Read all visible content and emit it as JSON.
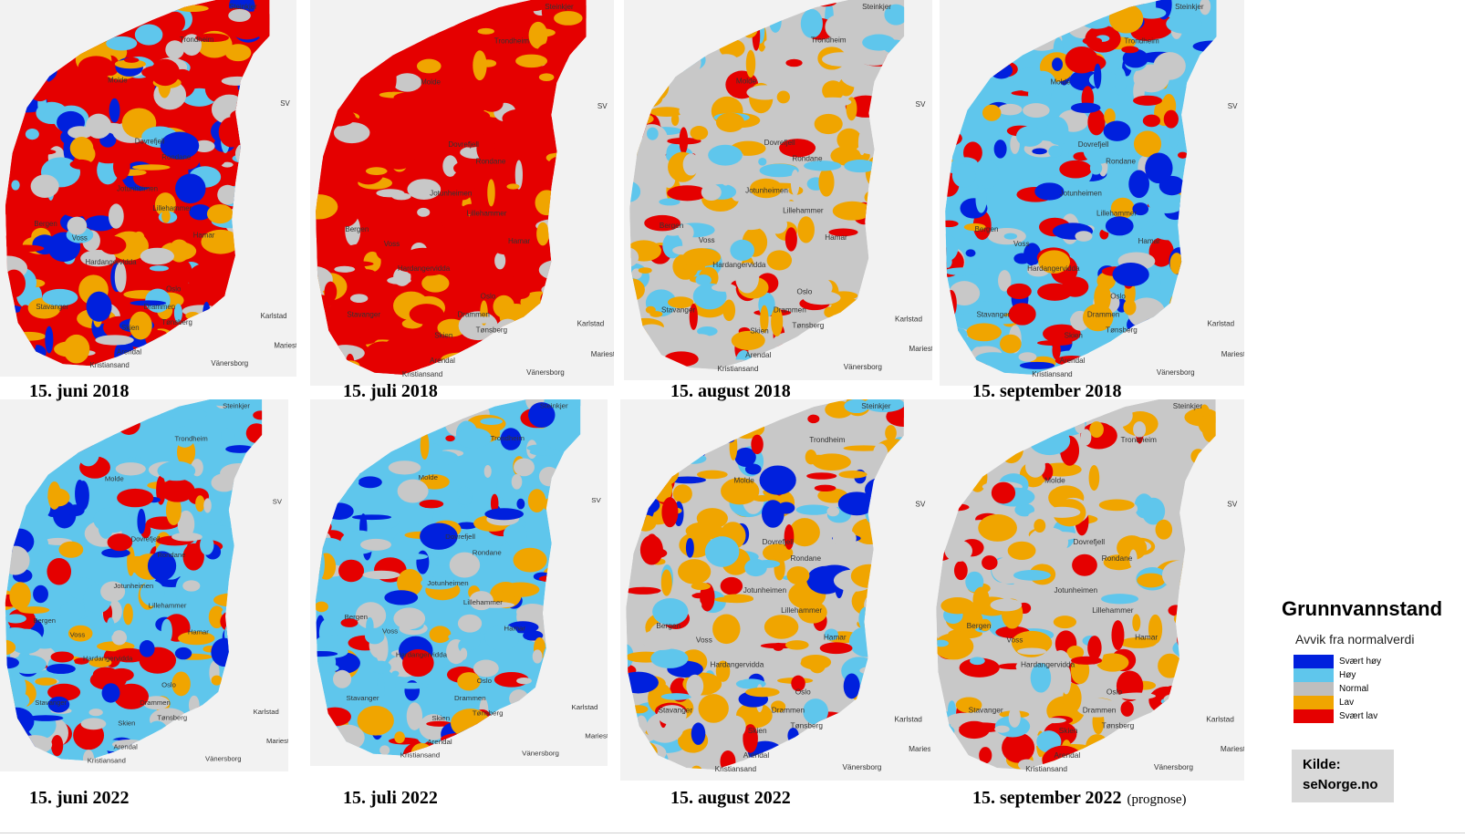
{
  "panels": [
    {
      "caption": "15. juni 2018",
      "palette": [
        "#e50000",
        "#e50000",
        "#f0a500",
        "#5fc6ec",
        "#0020dd",
        "#c8c8c8"
      ]
    },
    {
      "caption": "15. juli 2018",
      "palette": [
        "#e50000",
        "#e50000",
        "#e50000",
        "#f0a500",
        "#e50000",
        "#c8c8c8"
      ]
    },
    {
      "caption": "15. august 2018",
      "palette": [
        "#c8c8c8",
        "#f0a500",
        "#5fc6ec",
        "#e50000",
        "#c8c8c8",
        "#f0a500"
      ]
    },
    {
      "caption": "15. september 2018",
      "palette": [
        "#5fc6ec",
        "#0020dd",
        "#5fc6ec",
        "#e50000",
        "#f0a500",
        "#c8c8c8"
      ]
    },
    {
      "caption": "15. juni 2022",
      "palette": [
        "#5fc6ec",
        "#c8c8c8",
        "#e50000",
        "#f0a500",
        "#0020dd",
        "#5fc6ec"
      ]
    },
    {
      "caption": "15. juli 2022",
      "palette": [
        "#5fc6ec",
        "#0020dd",
        "#f0a500",
        "#e50000",
        "#c8c8c8",
        "#5fc6ec"
      ]
    },
    {
      "caption": "15. august 2022",
      "palette": [
        "#c8c8c8",
        "#f0a500",
        "#e50000",
        "#5fc6ec",
        "#f0a500",
        "#0020dd"
      ]
    },
    {
      "caption": "15. september 2022",
      "note": "(prognose)",
      "palette": [
        "#c8c8c8",
        "#f0a500",
        "#e50000",
        "#5fc6ec",
        "#f0a500",
        "#c8c8c8"
      ]
    }
  ],
  "cities": [
    "Steinkjer",
    "Trondheim",
    "Molde",
    "Dovrefjell",
    "Rondane",
    "Jotunheimen",
    "Lillehammer",
    "Hamar",
    "Bergen",
    "Voss",
    "Hardangervidda",
    "Oslo",
    "Drammen",
    "Stavanger",
    "Skien",
    "Tønsberg",
    "Arendal",
    "Kristiansand",
    "Karlstad",
    "Mariestad",
    "Vänersborg",
    "SV"
  ],
  "legend": {
    "title": "Grunnvannstand",
    "subtitle": "Avvik fra normalverdi",
    "items": [
      {
        "label": "Svært høy",
        "color": "#0020dd"
      },
      {
        "label": "Høy",
        "color": "#5fc6ec"
      },
      {
        "label": "Normal",
        "color": "#bebebe"
      },
      {
        "label": "Lav",
        "color": "#f0a500"
      },
      {
        "label": "Svært lav",
        "color": "#e50000"
      }
    ]
  },
  "source": {
    "line1": "Kilde:",
    "line2": "seNorge.no"
  }
}
